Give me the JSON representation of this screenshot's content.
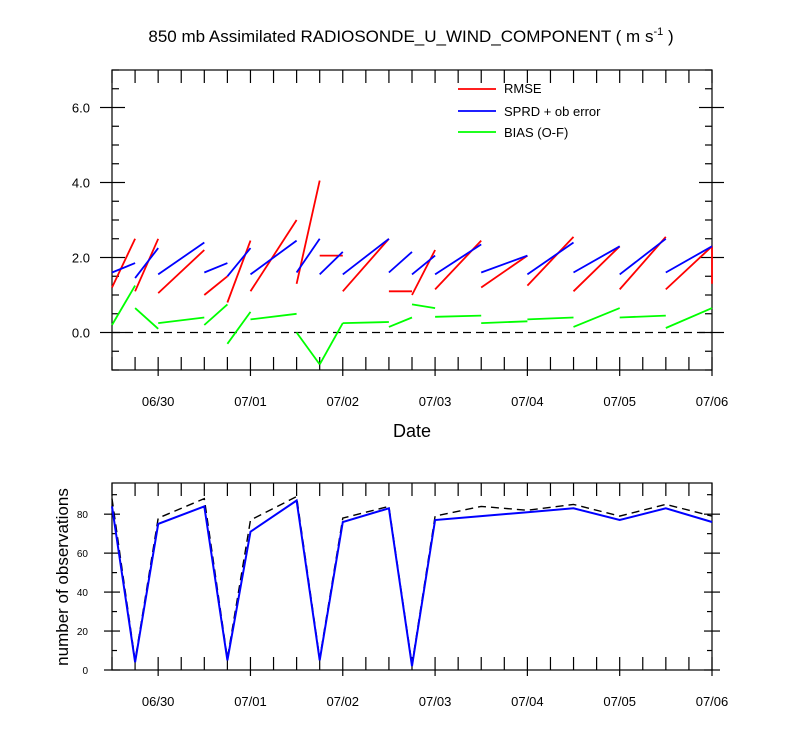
{
  "title_main": "850 mb Assimilated RADIOSONDE_U_WIND_COMPONENT ( m s",
  "title_exp": "-1",
  "title_close": " )",
  "colors": {
    "rmse": "#ff0000",
    "spread": "#0000ff",
    "bias": "#00ff00",
    "obs_used": "#0000ff",
    "obs_possible": "#000000"
  },
  "chart_data": [
    {
      "type": "line",
      "title": "850 mb Assimilated RADIOSONDE_U_WIND_COMPONENT ( m s-1 )",
      "xlabel": "Date",
      "ylabel": "",
      "x_note": "time in days since 06/30 00Z; each assimilation window drawn as a pair of points (start, end)",
      "xlim": [
        -0.5,
        6.0
      ],
      "ylim": [
        -1.0,
        7.0
      ],
      "x_ticks": [
        0,
        1,
        2,
        3,
        4,
        5,
        6
      ],
      "x_tick_labels": [
        "06/30",
        "07/01",
        "07/02",
        "07/03",
        "07/04",
        "07/05",
        "07/06"
      ],
      "y_ticks": [
        0,
        2,
        4,
        6
      ],
      "y_tick_labels": [
        "0.0",
        "2.0",
        "4.0",
        "6.0"
      ],
      "zero_line": true,
      "legend": [
        "RMSE",
        "SPRD + ob error",
        "BIAS (O-F)"
      ],
      "series": [
        {
          "name": "RMSE",
          "color": "#ff0000",
          "segments": [
            [
              [
                -0.5,
                1.2
              ],
              [
                -0.25,
                2.5
              ]
            ],
            [
              [
                -0.25,
                1.1
              ],
              [
                0.0,
                2.5
              ]
            ],
            [
              [
                0.0,
                1.05
              ],
              [
                0.5,
                2.2
              ]
            ],
            [
              [
                0.5,
                1.0
              ],
              [
                0.75,
                1.5
              ]
            ],
            [
              [
                0.75,
                0.8
              ],
              [
                1.0,
                2.45
              ]
            ],
            [
              [
                1.0,
                1.1
              ],
              [
                1.5,
                3.0
              ]
            ],
            [
              [
                1.5,
                1.3
              ],
              [
                1.75,
                4.05
              ]
            ],
            [
              [
                1.75,
                2.05
              ],
              [
                2.0,
                2.05
              ]
            ],
            [
              [
                2.0,
                1.1
              ],
              [
                2.5,
                2.5
              ]
            ],
            [
              [
                2.5,
                1.1
              ],
              [
                2.75,
                1.1
              ]
            ],
            [
              [
                2.75,
                1.0
              ],
              [
                3.0,
                2.2
              ]
            ],
            [
              [
                3.0,
                1.15
              ],
              [
                3.5,
                2.45
              ]
            ],
            [
              [
                3.5,
                1.2
              ],
              [
                4.0,
                2.05
              ]
            ],
            [
              [
                4.0,
                1.25
              ],
              [
                4.5,
                2.55
              ]
            ],
            [
              [
                4.5,
                1.1
              ],
              [
                5.0,
                2.3
              ]
            ],
            [
              [
                5.0,
                1.15
              ],
              [
                5.5,
                2.55
              ]
            ],
            [
              [
                5.5,
                1.15
              ],
              [
                6.0,
                2.3
              ]
            ],
            [
              [
                6.0,
                1.3
              ],
              [
                6.0,
                2.3
              ]
            ]
          ]
        },
        {
          "name": "SPRD + ob error",
          "color": "#0000ff",
          "segments": [
            [
              [
                -0.5,
                1.6
              ],
              [
                -0.25,
                1.85
              ]
            ],
            [
              [
                -0.25,
                1.45
              ],
              [
                0.0,
                2.25
              ]
            ],
            [
              [
                0.0,
                1.55
              ],
              [
                0.5,
                2.4
              ]
            ],
            [
              [
                0.5,
                1.6
              ],
              [
                0.75,
                1.85
              ]
            ],
            [
              [
                0.75,
                1.5
              ],
              [
                1.0,
                2.25
              ]
            ],
            [
              [
                1.0,
                1.55
              ],
              [
                1.5,
                2.45
              ]
            ],
            [
              [
                1.5,
                1.6
              ],
              [
                1.75,
                2.5
              ]
            ],
            [
              [
                1.75,
                1.55
              ],
              [
                2.0,
                2.15
              ]
            ],
            [
              [
                2.0,
                1.55
              ],
              [
                2.5,
                2.5
              ]
            ],
            [
              [
                2.5,
                1.6
              ],
              [
                2.75,
                2.15
              ]
            ],
            [
              [
                2.75,
                1.55
              ],
              [
                3.0,
                2.05
              ]
            ],
            [
              [
                3.0,
                1.55
              ],
              [
                3.5,
                2.35
              ]
            ],
            [
              [
                3.5,
                1.6
              ],
              [
                4.0,
                2.05
              ]
            ],
            [
              [
                4.0,
                1.55
              ],
              [
                4.5,
                2.4
              ]
            ],
            [
              [
                4.5,
                1.6
              ],
              [
                5.0,
                2.3
              ]
            ],
            [
              [
                5.0,
                1.55
              ],
              [
                5.5,
                2.5
              ]
            ],
            [
              [
                5.5,
                1.6
              ],
              [
                6.0,
                2.3
              ]
            ]
          ]
        },
        {
          "name": "BIAS (O-F)",
          "color": "#00ff00",
          "segments": [
            [
              [
                -0.5,
                0.2
              ],
              [
                -0.25,
                1.25
              ]
            ],
            [
              [
                -0.25,
                0.65
              ],
              [
                0.0,
                0.1
              ]
            ],
            [
              [
                0.0,
                0.25
              ],
              [
                0.5,
                0.4
              ]
            ],
            [
              [
                0.5,
                0.2
              ],
              [
                0.75,
                0.75
              ]
            ],
            [
              [
                0.75,
                -0.3
              ],
              [
                1.0,
                0.55
              ]
            ],
            [
              [
                1.0,
                0.35
              ],
              [
                1.5,
                0.5
              ]
            ],
            [
              [
                1.5,
                0.0
              ],
              [
                1.75,
                -0.85
              ]
            ],
            [
              [
                1.75,
                -0.85
              ],
              [
                2.0,
                0.25
              ]
            ],
            [
              [
                2.0,
                0.25
              ],
              [
                2.5,
                0.28
              ]
            ],
            [
              [
                2.5,
                0.15
              ],
              [
                2.75,
                0.4
              ]
            ],
            [
              [
                2.75,
                0.75
              ],
              [
                3.0,
                0.65
              ]
            ],
            [
              [
                3.0,
                0.42
              ],
              [
                3.5,
                0.45
              ]
            ],
            [
              [
                3.5,
                0.25
              ],
              [
                4.0,
                0.3
              ]
            ],
            [
              [
                4.0,
                0.35
              ],
              [
                4.5,
                0.4
              ]
            ],
            [
              [
                4.5,
                0.15
              ],
              [
                5.0,
                0.65
              ]
            ],
            [
              [
                5.0,
                0.4
              ],
              [
                5.5,
                0.45
              ]
            ],
            [
              [
                5.5,
                0.12
              ],
              [
                6.0,
                0.65
              ]
            ]
          ]
        }
      ]
    },
    {
      "type": "line",
      "title": "",
      "xlabel": "",
      "ylabel": "number of observations",
      "xlim": [
        -0.5,
        6.0
      ],
      "ylim": [
        0,
        96
      ],
      "x_ticks": [
        0,
        1,
        2,
        3,
        4,
        5,
        6
      ],
      "x_tick_labels": [
        "06/30",
        "07/01",
        "07/02",
        "07/03",
        "07/04",
        "07/05",
        "07/06"
      ],
      "y_ticks": [
        0,
        20,
        40,
        60,
        80
      ],
      "y_tick_labels": [
        "0",
        "20",
        "40",
        "60",
        "80"
      ],
      "series": [
        {
          "name": "observations used",
          "color": "#0000ff",
          "style": "solid",
          "x": [
            -0.5,
            -0.25,
            0.0,
            0.5,
            0.75,
            1.0,
            1.5,
            1.75,
            2.0,
            2.5,
            2.75,
            3.0,
            3.5,
            4.0,
            4.5,
            5.0,
            5.5,
            6.0
          ],
          "y": [
            84,
            4,
            75,
            84,
            5,
            71,
            87,
            5,
            76,
            83,
            2,
            77,
            79,
            81,
            83,
            77,
            83,
            76
          ]
        },
        {
          "name": "observations possible",
          "color": "#000000",
          "style": "dashed",
          "x": [
            -0.5,
            -0.25,
            0.0,
            0.5,
            0.75,
            1.0,
            1.5,
            1.75,
            2.0,
            2.5,
            2.75,
            3.0,
            3.5,
            4.0,
            4.5,
            5.0,
            5.5,
            6.0
          ],
          "y": [
            88,
            5,
            78,
            88,
            6,
            77,
            89,
            6,
            78,
            84,
            3,
            79,
            84,
            82,
            85,
            79,
            85,
            79
          ]
        }
      ]
    }
  ]
}
